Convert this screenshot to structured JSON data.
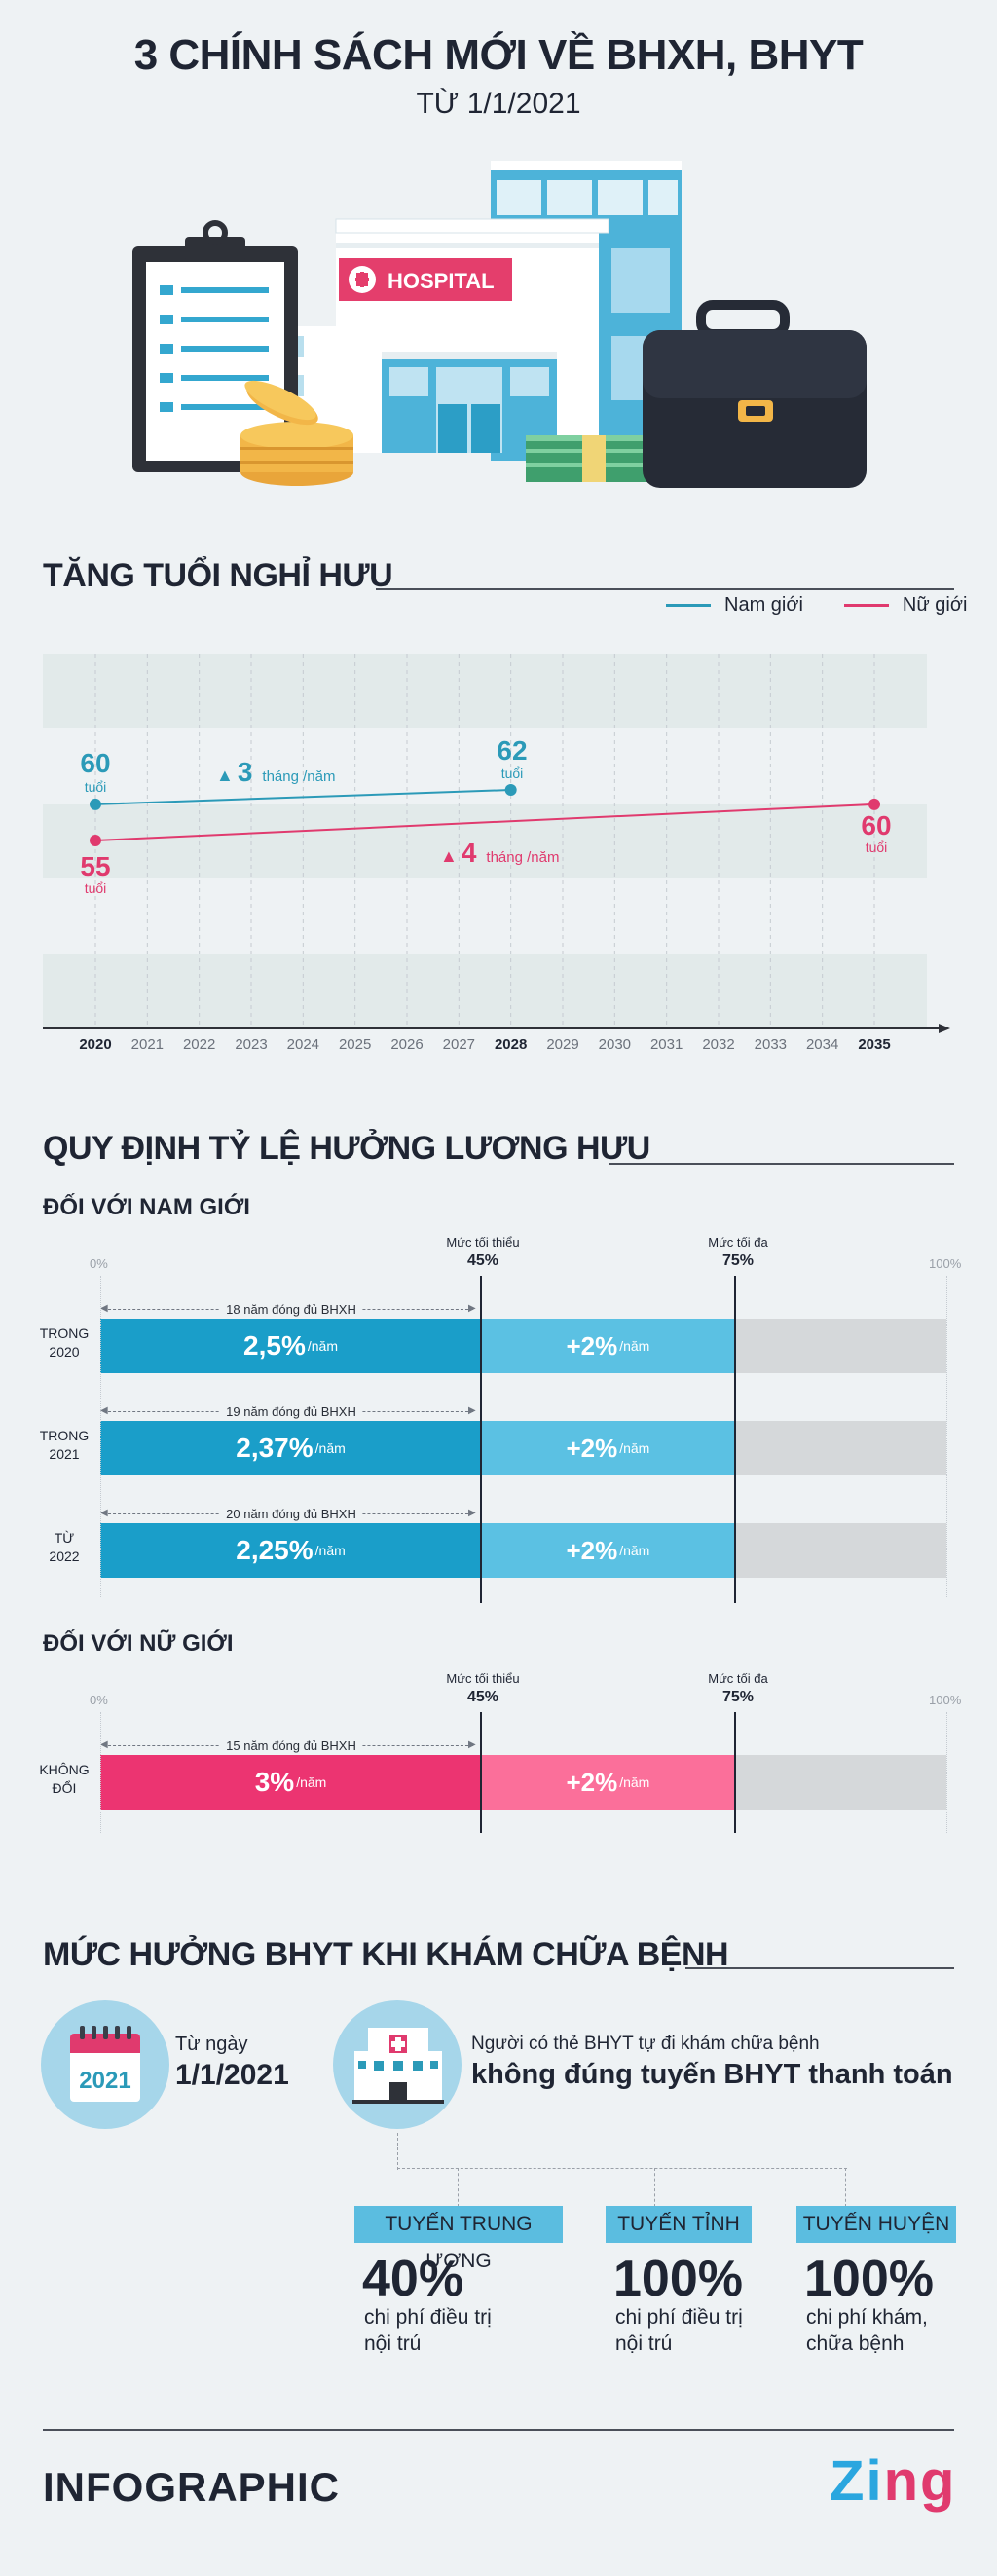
{
  "header": {
    "title": "3 CHÍNH SÁCH MỚI VỀ BHXH, BHYT",
    "subtitle": "TỪ 1/1/2021",
    "hospital_sign": "HOSPITAL"
  },
  "retirement": {
    "title": "TĂNG TUỔI NGHỈ HƯU",
    "legend_male": "Nam giới",
    "legend_female": "Nữ giới",
    "male_start_value": "60",
    "male_end_value": "62",
    "female_start_value": "55",
    "female_end_value": "60",
    "unit": "tuổi",
    "male_increase_value": "3",
    "male_increase_unit": "tháng /năm",
    "female_increase_value": "4",
    "female_increase_unit": "tháng /năm",
    "colors": {
      "male": "#2b9ab8",
      "female": "#e03a6e"
    }
  },
  "chart_data": {
    "type": "line",
    "x": [
      2020,
      2021,
      2022,
      2023,
      2024,
      2025,
      2026,
      2027,
      2028,
      2029,
      2030,
      2031,
      2032,
      2033,
      2034,
      2035
    ],
    "x_tick_labels": [
      "2020",
      "2021",
      "2022",
      "2023",
      "2024",
      "2025",
      "2026",
      "2027",
      "2028",
      "2029",
      "2030",
      "2031",
      "2032",
      "2033",
      "2034",
      "2035"
    ],
    "series": [
      {
        "name": "Nam giới",
        "points": [
          [
            2020,
            60
          ],
          [
            2028,
            62
          ]
        ]
      },
      {
        "name": "Nữ giới",
        "points": [
          [
            2020,
            55
          ],
          [
            2035,
            60
          ]
        ]
      }
    ],
    "legend_position": "top-right"
  },
  "pension": {
    "title": "QUY ĐỊNH TỶ LỆ HƯỞNG LƯƠNG HƯU",
    "axis_min_label": "0%",
    "axis_max_label": "100%",
    "min_label": "Mức tối thiểu",
    "min_value": "45%",
    "max_label": "Mức tối đa",
    "max_value": "75%",
    "min_pct": 45,
    "max_pct": 75,
    "male": {
      "title": "ĐỐI VỚI NAM GIỚI",
      "rows": [
        {
          "label_1": "TRONG",
          "label_2": "2020",
          "duration": "18 năm đóng đủ BHXH",
          "base_rate": "2,5%",
          "extra_rate": "+2%",
          "unit": "/năm"
        },
        {
          "label_1": "TRONG",
          "label_2": "2021",
          "duration": "19 năm đóng đủ BHXH",
          "base_rate": "2,37%",
          "extra_rate": "+2%",
          "unit": "/năm"
        },
        {
          "label_1": "TỪ",
          "label_2": "2022",
          "duration": "20 năm đóng đủ BHXH",
          "base_rate": "2,25%",
          "extra_rate": "+2%",
          "unit": "/năm"
        }
      ]
    },
    "female": {
      "title": "ĐỐI VỚI NỮ GIỚI",
      "rows": [
        {
          "label_1": "KHÔNG",
          "label_2": "ĐỔI",
          "duration": "15 năm đóng đủ BHXH",
          "base_rate": "3%",
          "extra_rate": "+2%",
          "unit": "/năm"
        }
      ]
    },
    "colors": {
      "male_base": "#1a9ec9",
      "male_extra": "#5bc1e3",
      "female_base": "#ec3471",
      "female_extra": "#fb6f9a",
      "rest": "#d5d8da"
    }
  },
  "health": {
    "title": "MỨC HƯỞNG BHYT KHI KHÁM CHỮA BỆNH",
    "calendar_year": "2021",
    "from_label": "Từ ngày",
    "from_date": "1/1/2021",
    "desc_line1": "Người có thẻ BHYT tự đi khám chữa bệnh",
    "desc_line2": "không đúng tuyến BHYT thanh toán",
    "tiers": [
      {
        "name": "TUYẾN TRUNG ƯƠNG",
        "percent": "40%",
        "desc_1": "chi phí điều trị",
        "desc_2": "nội trú"
      },
      {
        "name": "TUYẾN TỈNH",
        "percent": "100%",
        "desc_1": "chi phí điều trị",
        "desc_2": "nội trú"
      },
      {
        "name": "TUYẾN HUYỆN",
        "percent": "100%",
        "desc_1": "chi phí khám,",
        "desc_2": "chữa bệnh"
      }
    ]
  },
  "footer": {
    "brand": "INFOGRAPHIC",
    "logo": "Zing",
    "icons": [
      "clipboard-icon",
      "coins-icon",
      "hospital-icon",
      "money-icon",
      "briefcase-icon",
      "calendar-icon",
      "clinic-icon"
    ]
  }
}
